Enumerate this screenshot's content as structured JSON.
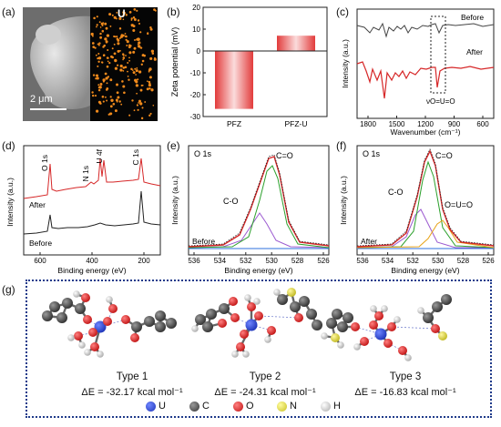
{
  "panel_labels": [
    "(a)",
    "(b)",
    "(c)",
    "(d)",
    "(e)",
    "(f)",
    "(g)"
  ],
  "panel_a": {
    "element_map_label": "U",
    "scale_bar": "2 μm"
  },
  "colors": {
    "red": "#d62728",
    "black": "#222222",
    "green": "#2ca02c",
    "purple": "#9b59d0",
    "orange": "#e8a317",
    "blue": "#2c6fdc",
    "frame_blue": "#1f3a8a",
    "u_blue": "#1d34b8",
    "c_gray": "#444444",
    "o_red": "#d92020",
    "n_yellow": "#d8d040",
    "h_white": "#dddddd"
  },
  "chart_data": [
    {
      "id": "b",
      "type": "bar",
      "categories": [
        "PFZ",
        "PFZ-U"
      ],
      "values": [
        -26.5,
        7.0
      ],
      "ylabel": "Zeta potential (mV)",
      "ylim": [
        -30,
        20
      ],
      "yticks": [
        "-30",
        "-20",
        "-10",
        "0",
        "10",
        "20"
      ]
    },
    {
      "id": "c",
      "type": "line",
      "xlabel": "Wavenumber (cm⁻¹)",
      "ylabel": "Intensity (a.u.)",
      "xticks": [
        "1800",
        "1500",
        "1200",
        "900",
        "600"
      ],
      "series": [
        {
          "name": "Before"
        },
        {
          "name": "After"
        }
      ],
      "annotation": "νO=U=O"
    },
    {
      "id": "d",
      "type": "line",
      "xlabel": "Binding energy (eV)",
      "ylabel": "Intensity (a.u.)",
      "xticks": [
        "600",
        "400",
        "200"
      ],
      "series": [
        {
          "name": "After"
        },
        {
          "name": "Before"
        }
      ],
      "peak_labels": [
        "O 1s",
        "N 1s",
        "U 4f",
        "C 1s"
      ]
    },
    {
      "id": "e",
      "type": "line",
      "title": "O 1s",
      "xlabel": "Binding energy (eV)",
      "ylabel": "Intensity (a.u.)",
      "xticks": [
        "536",
        "534",
        "532",
        "530",
        "528",
        "526"
      ],
      "series": [
        {
          "name": "Before"
        }
      ],
      "component_labels": [
        "C=O",
        "C-O"
      ]
    },
    {
      "id": "f",
      "type": "line",
      "title": "O 1s",
      "xlabel": "Binding energy (eV)",
      "ylabel": "Intensity (a.u.)",
      "xticks": [
        "536",
        "534",
        "532",
        "530",
        "528",
        "526"
      ],
      "series": [
        {
          "name": "After"
        }
      ],
      "component_labels": [
        "C=O",
        "C-O",
        "O=U=O"
      ]
    }
  ],
  "panel_g": {
    "types": [
      {
        "label": "Type 1",
        "energy": "ΔE = -32.17 kcal mol⁻¹"
      },
      {
        "label": "Type 2",
        "energy": "ΔE = -24.31 kcal mol⁻¹"
      },
      {
        "label": "Type 3",
        "energy": "ΔE = -16.83 kcal mol⁻¹"
      }
    ],
    "legend": [
      "U",
      "C",
      "O",
      "N",
      "H"
    ]
  }
}
